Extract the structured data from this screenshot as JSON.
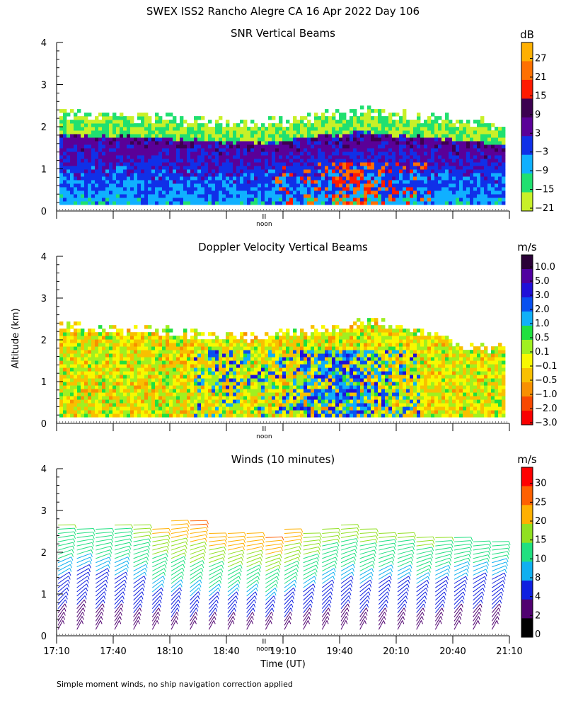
{
  "figure": {
    "title": "SWEX ISS2 Rancho Alegre CA  16 Apr 2022 Day 106",
    "ylabel": "Altitude (km)",
    "xlabel": "Time (UT)",
    "noon_label": "noon",
    "footnote": "Simple moment winds, no ship navigation correction applied"
  },
  "chart_data": [
    {
      "type": "heatmap",
      "id": "snr",
      "title": "SNR Vertical Beams",
      "xlabel": "",
      "ylabel": "Altitude (km)",
      "xlim_hours": [
        17.1667,
        21.1667
      ],
      "ylim": [
        0,
        4
      ],
      "yticks": [
        0,
        1,
        2,
        3,
        4
      ],
      "colorbar": {
        "unit": "dB",
        "ticks": [
          "27",
          "21",
          "15",
          "9",
          "3",
          "−3",
          "−9",
          "−15",
          "−21"
        ],
        "colors": [
          "#ffb000",
          "#ff7000",
          "#ff1a00",
          "#3c0050",
          "#5a0098",
          "#1030e8",
          "#10b0ff",
          "#20e070",
          "#c8f028"
        ]
      },
      "top_of_data_km": [
        2.4,
        2.35,
        2.3,
        2.3,
        2.3,
        2.25,
        2.2,
        2.15,
        2.15,
        2.1,
        2.15,
        2.2,
        2.3,
        2.35,
        2.45,
        2.4,
        2.35,
        2.3,
        2.2,
        2.15,
        2.1,
        2.1
      ],
      "value_range_db": [
        -21,
        27
      ]
    },
    {
      "type": "heatmap",
      "id": "doppler",
      "title": "Doppler Velocity Vertical Beams",
      "xlabel": "",
      "ylabel": "Altitude (km)",
      "xlim_hours": [
        17.1667,
        21.1667
      ],
      "ylim": [
        0,
        4
      ],
      "yticks": [
        0,
        1,
        2,
        3,
        4
      ],
      "colorbar": {
        "unit": "m/s",
        "ticks": [
          "10.0",
          "5.0",
          "3.0",
          "2.0",
          "1.0",
          "0.5",
          "0.1",
          "−0.1",
          "−0.5",
          "−1.0",
          "−2.0",
          "−3.0"
        ],
        "colors": [
          "#2a0038",
          "#5000a0",
          "#2010d8",
          "#0850f0",
          "#10b0f8",
          "#20e040",
          "#a0f020",
          "#f8f800",
          "#f8c000",
          "#f89000",
          "#f84800",
          "#f80000"
        ]
      },
      "top_of_data_km": [
        2.4,
        2.35,
        2.3,
        2.3,
        2.3,
        2.25,
        2.2,
        2.15,
        2.15,
        2.1,
        2.15,
        2.2,
        2.3,
        2.35,
        2.45,
        2.4,
        2.35,
        2.2,
        2.1,
        1.8,
        1.8,
        1.9
      ],
      "value_range_ms": [
        -3.0,
        10.0
      ]
    },
    {
      "type": "scatter",
      "id": "winds",
      "title": "Winds (10 minutes)",
      "xlabel": "Time (UT)",
      "ylabel": "Altitude (km)",
      "xlim_hours": [
        17.1667,
        21.1667
      ],
      "ylim": [
        0,
        4
      ],
      "yticks": [
        0,
        1,
        2,
        3,
        4
      ],
      "xtick_labels": [
        "17:10",
        "17:40",
        "18:10",
        "18:40",
        "19:10",
        "19:40",
        "20:10",
        "20:40",
        "21:10"
      ],
      "colorbar": {
        "unit": "m/s",
        "ticks": [
          "30",
          "25",
          "20",
          "15",
          "10",
          "8",
          "4",
          "2",
          "0"
        ],
        "colors": [
          "#ff0000",
          "#ff6000",
          "#ffb000",
          "#90e020",
          "#20e080",
          "#10b0f0",
          "#1020e0",
          "#500070",
          "#000000"
        ]
      },
      "profile_times_hours": [
        17.1667,
        17.3333,
        17.5,
        17.6667,
        17.8333,
        18.0,
        18.1667,
        18.3333,
        18.5,
        18.6667,
        18.8333,
        19.0,
        19.1667,
        19.3333,
        19.5,
        19.6667,
        19.8333,
        20.0,
        20.1667,
        20.3333,
        20.5,
        20.6667,
        20.8333,
        21.0
      ],
      "profile_top_km": [
        2.7,
        2.65,
        2.65,
        2.7,
        2.7,
        2.65,
        2.85,
        2.8,
        2.5,
        2.55,
        2.55,
        2.45,
        2.6,
        2.5,
        2.65,
        2.75,
        2.6,
        2.55,
        2.55,
        2.45,
        2.4,
        2.4,
        2.35,
        2.3
      ],
      "max_speed_ms": [
        16,
        14,
        15,
        16,
        18,
        22,
        26,
        27,
        24,
        26,
        26,
        27,
        24,
        20,
        19,
        18,
        18,
        17,
        17,
        18,
        16,
        15,
        14,
        13
      ]
    }
  ],
  "colors": {
    "frame": "#000000",
    "background": "#ffffff"
  }
}
